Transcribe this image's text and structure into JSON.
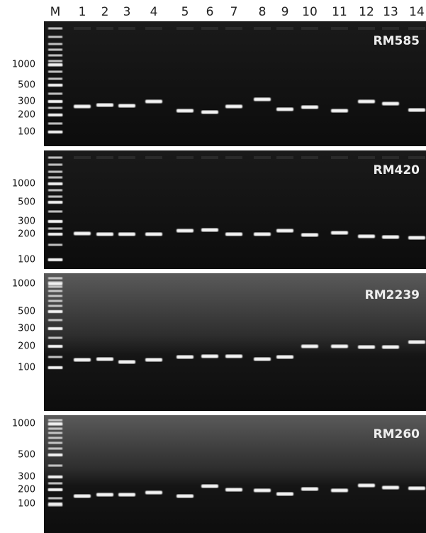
{
  "lanes": [
    "M",
    "1",
    "2",
    "3",
    "4",
    "5",
    "6",
    "7",
    "8",
    "9",
    "10",
    "11",
    "12",
    "13",
    "14"
  ],
  "panels": [
    {
      "name": "RM585",
      "sizes": [
        "1000",
        "500",
        "300",
        "200",
        "100"
      ]
    },
    {
      "name": "RM420",
      "sizes": [
        "1000",
        "500",
        "300",
        "200",
        "100"
      ]
    },
    {
      "name": "RM2239",
      "sizes": [
        "1000",
        "500",
        "300",
        "200",
        "100"
      ]
    },
    {
      "name": "RM260",
      "sizes": [
        "1000",
        "500",
        "300",
        "200",
        "100"
      ]
    }
  ]
}
